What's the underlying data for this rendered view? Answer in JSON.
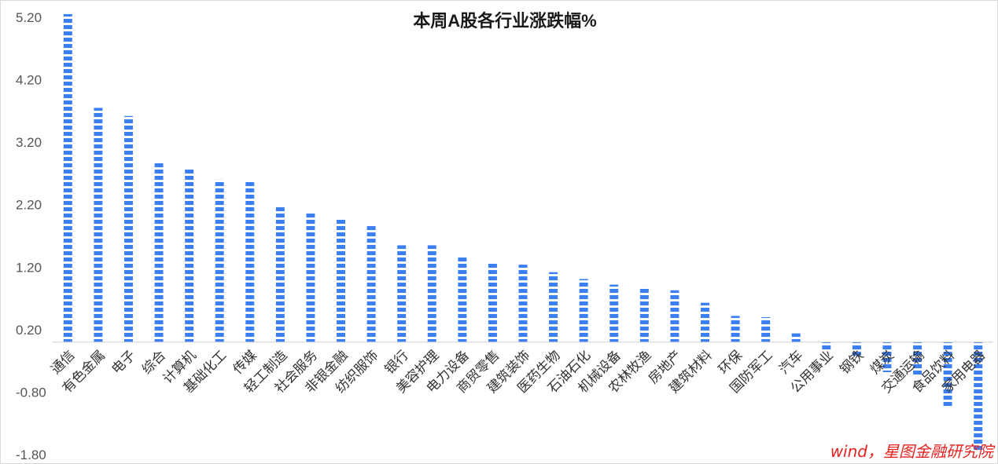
{
  "chart_data": {
    "type": "bar",
    "title": "本周A股各行业涨跌幅%",
    "xlabel": "",
    "ylabel": "",
    "ylim": [
      -1.8,
      5.2
    ],
    "yticks": [
      "5.20",
      "4.20",
      "3.20",
      "2.20",
      "1.20",
      "0.20",
      "-0.80",
      "-1.80"
    ],
    "ytick_values": [
      5.2,
      4.2,
      3.2,
      2.2,
      1.2,
      0.2,
      -0.8,
      -1.8
    ],
    "grid": false,
    "legend": "none",
    "bar_color": "#3b7ff5",
    "categories": [
      "通信",
      "有色金属",
      "电子",
      "综合",
      "计算机",
      "基础化工",
      "传媒",
      "轻工制造",
      "社会服务",
      "非银金融",
      "纺织服饰",
      "银行",
      "美容护理",
      "电力设备",
      "商贸零售",
      "建筑装饰",
      "医药生物",
      "石油石化",
      "机械设备",
      "农林牧渔",
      "房地产",
      "建筑材料",
      "环保",
      "国防军工",
      "汽车",
      "公用事业",
      "钢铁",
      "煤炭",
      "交通运输",
      "食品饮料",
      "家用电器"
    ],
    "values": [
      5.25,
      3.75,
      3.62,
      2.87,
      2.8,
      2.6,
      2.57,
      2.17,
      2.07,
      1.98,
      1.87,
      1.55,
      1.55,
      1.37,
      1.28,
      1.24,
      1.12,
      1.01,
      0.92,
      0.89,
      0.83,
      0.63,
      0.42,
      0.4,
      0.14,
      -0.12,
      -0.23,
      -0.48,
      -0.52,
      -1.05,
      -1.75
    ],
    "source_text": "wind，星图金融研究院"
  }
}
